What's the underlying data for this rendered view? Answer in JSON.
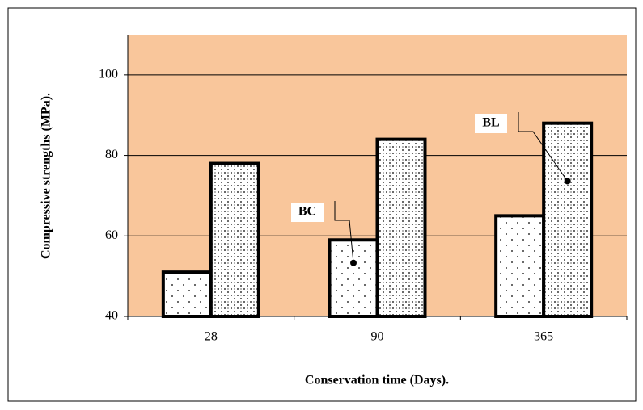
{
  "chart_data": {
    "type": "bar",
    "x_label": "Conservation time (Days).",
    "y_label": "Compressive strengths (MPa).",
    "categories": [
      "28",
      "90",
      "365"
    ],
    "series": [
      {
        "name": "BC",
        "color": "#000000",
        "values": [
          51,
          59,
          65
        ]
      },
      {
        "name": "BL",
        "color": "#000000",
        "values": [
          78,
          84,
          88
        ]
      }
    ],
    "ylim": [
      40,
      110
    ],
    "yticks": [
      40,
      60,
      80,
      100
    ],
    "grid": true,
    "background": "#f9c69b"
  }
}
